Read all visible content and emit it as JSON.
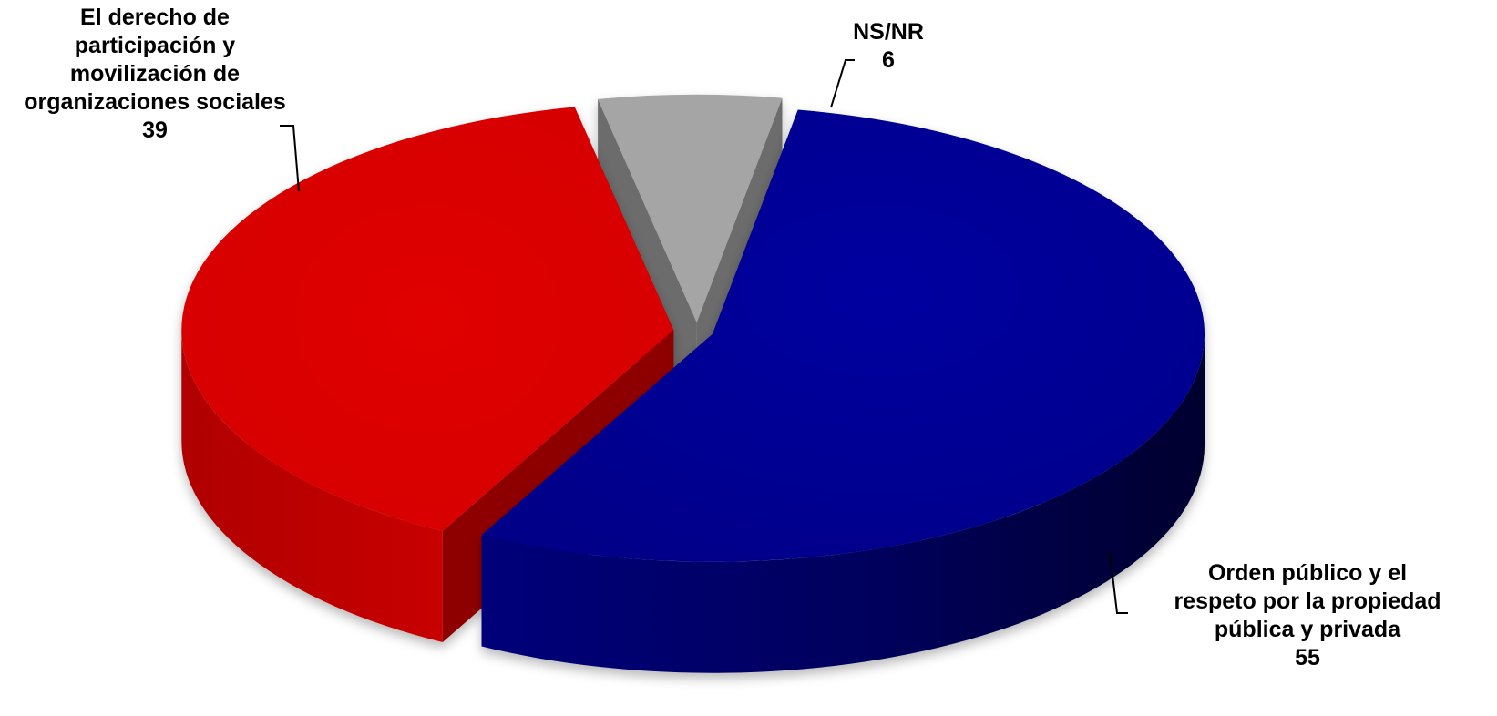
{
  "chart_data": {
    "type": "pie",
    "style": "3d exploded",
    "slices": [
      {
        "label_lines": [
          "Orden público y el",
          "respeto por la propiedad",
          "pública y privada"
        ],
        "value": 55,
        "value_text": "55",
        "color": "#00008f",
        "dark": "#00004a"
      },
      {
        "label_lines": [
          "El derecho de",
          "participación y",
          "movilización de",
          "organizaciones sociales"
        ],
        "value": 39,
        "value_text": "39",
        "color": "#e00000",
        "dark": "#8e0000"
      },
      {
        "label_lines": [
          "NS/NR"
        ],
        "value": 6,
        "value_text": "6",
        "color": "#a5a5a5",
        "dark": "#6c6c6c"
      }
    ],
    "legend": "none",
    "data_labels": "outside with leader lines"
  }
}
